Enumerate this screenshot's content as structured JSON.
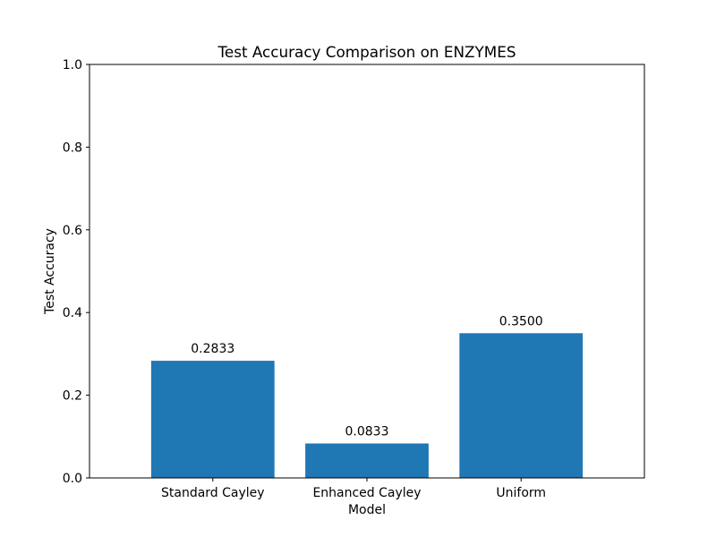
{
  "chart_data": {
    "type": "bar",
    "title": "Test Accuracy Comparison on ENZYMES",
    "xlabel": "Model",
    "ylabel": "Test Accuracy",
    "categories": [
      "Standard Cayley",
      "Enhanced Cayley",
      "Uniform"
    ],
    "values": [
      0.2833,
      0.0833,
      0.35
    ],
    "bar_labels": [
      "0.2833",
      "0.0833",
      "0.3500"
    ],
    "ylim": [
      0,
      1.0
    ],
    "yticks": [
      0.0,
      0.2,
      0.4,
      0.6,
      0.8,
      1.0
    ],
    "ytick_labels": [
      "0.0",
      "0.2",
      "0.4",
      "0.6",
      "0.8",
      "1.0"
    ],
    "bar_color": "#1f77b4",
    "grid": false,
    "legend": "none"
  }
}
